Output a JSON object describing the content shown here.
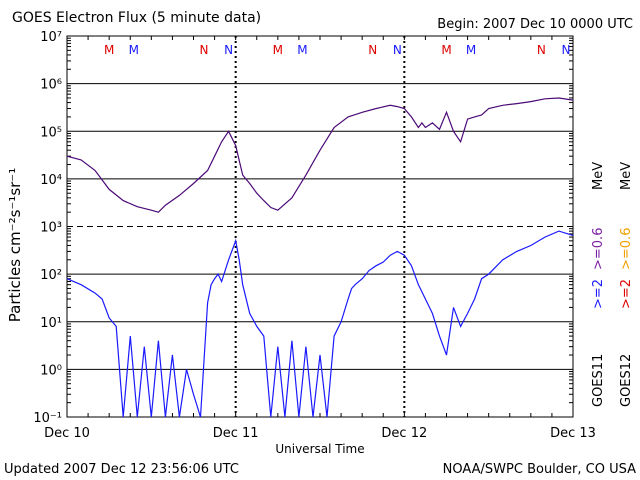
{
  "header": {
    "title": "GOES Electron Flux (5 minute data)",
    "begin": "Begin: 2007 Dec 10 0000 UTC"
  },
  "footer": {
    "updated": "Updated 2007 Dec 12 23:56:06 UTC",
    "credit": "NOAA/SWPC Boulder, CO USA"
  },
  "right_labels": {
    "goes11": "GOES11",
    "goes12": "GOES12",
    "ge2": ">=2",
    "ge06": ">=0.6",
    "mev": "MeV"
  },
  "colors": {
    "series_2mev": "#1a1aff",
    "series_06mev": "#4b0a78",
    "marker_m": "#e00000",
    "marker_n_red": "#e00000",
    "label_goes11_2mev": "#1a1aff",
    "label_goes11_06mev": "#7a1fa2",
    "label_goes12_2mev": "#e00000",
    "label_goes12_06mev": "#f0a000"
  },
  "chart_data": {
    "type": "line",
    "title": "GOES Electron Flux (5 minute data)",
    "xlabel": "Universal Time",
    "ylabel": "Particles cm⁻²s⁻¹sr⁻¹",
    "y_scale": "log",
    "ylim": [
      0.1,
      10000000
    ],
    "xlim_hours": [
      0,
      72
    ],
    "x_ticks": [
      {
        "hour": 0,
        "label": "Dec 10"
      },
      {
        "hour": 24,
        "label": "Dec 11"
      },
      {
        "hour": 48,
        "label": "Dec 12"
      },
      {
        "hour": 72,
        "label": "Dec 13"
      }
    ],
    "y_ticks": [
      {
        "exp": -1,
        "label": "10⁻¹"
      },
      {
        "exp": 0,
        "label": "10⁰"
      },
      {
        "exp": 1,
        "label": "10¹"
      },
      {
        "exp": 2,
        "label": "10²"
      },
      {
        "exp": 3,
        "label": "10³"
      },
      {
        "exp": 4,
        "label": "10⁴"
      },
      {
        "exp": 5,
        "label": "10⁵"
      },
      {
        "exp": 6,
        "label": "10⁶"
      },
      {
        "exp": 7,
        "label": "10⁷"
      }
    ],
    "threshold": 1000,
    "markers": [
      {
        "hour": 6,
        "label": "M"
      },
      {
        "hour": 9.5,
        "label": "M"
      },
      {
        "hour": 19.5,
        "label": "N"
      },
      {
        "hour": 23,
        "label": "N"
      },
      {
        "hour": 30,
        "label": "M"
      },
      {
        "hour": 33.5,
        "label": "M"
      },
      {
        "hour": 43.5,
        "label": "N"
      },
      {
        "hour": 47,
        "label": "N"
      },
      {
        "hour": 54,
        "label": "M"
      },
      {
        "hour": 57.5,
        "label": "M"
      },
      {
        "hour": 67.5,
        "label": "N"
      },
      {
        "hour": 71,
        "label": "N"
      }
    ],
    "series": [
      {
        "name": ">=0.6 MeV",
        "x": [
          0,
          2,
          4,
          6,
          8,
          10,
          12,
          13,
          14,
          16,
          18,
          20,
          21,
          22,
          23,
          24,
          25,
          26,
          27,
          28,
          29,
          30,
          32,
          34,
          36,
          38,
          40,
          42,
          44,
          46,
          47,
          48,
          49,
          50,
          50.5,
          51,
          52,
          53,
          54,
          55,
          56,
          57,
          58,
          59,
          60,
          62,
          64,
          66,
          68,
          70,
          72
        ],
        "y": [
          30000,
          25000,
          15000,
          6000,
          3500,
          2600,
          2200,
          2000,
          2800,
          4500,
          8000,
          15000,
          30000,
          60000,
          100000,
          50000,
          12000,
          8000,
          5000,
          3500,
          2500,
          2200,
          4000,
          12000,
          40000,
          120000,
          200000,
          250000,
          300000,
          350000,
          330000,
          300000,
          200000,
          120000,
          150000,
          120000,
          150000,
          110000,
          250000,
          100000,
          60000,
          180000,
          200000,
          220000,
          300000,
          350000,
          380000,
          420000,
          480000,
          500000,
          450000
        ]
      },
      {
        "name": ">=2 MeV",
        "x": [
          0,
          2,
          4,
          5,
          6,
          7,
          8,
          9,
          10,
          11,
          12,
          13,
          14,
          15,
          16,
          17,
          18,
          19,
          20,
          20.5,
          21,
          21.5,
          22,
          23,
          24,
          24.5,
          25,
          26,
          27,
          28,
          29,
          30,
          31,
          32,
          33,
          34,
          35,
          36,
          37,
          38,
          39,
          40,
          40.5,
          41,
          42,
          43,
          44,
          45,
          46,
          47,
          48,
          49,
          50,
          51,
          52,
          53,
          54,
          55,
          56,
          57,
          58,
          59,
          60,
          62,
          64,
          66,
          68,
          70,
          72
        ],
        "y": [
          80,
          60,
          40,
          30,
          12,
          8,
          0.1,
          5,
          0.1,
          3,
          0.1,
          4,
          0.1,
          2,
          0.1,
          1,
          0.3,
          0.1,
          25,
          60,
          80,
          100,
          70,
          200,
          500,
          200,
          60,
          15,
          8,
          5,
          0.1,
          3,
          0.1,
          4,
          0.1,
          3,
          0.1,
          2,
          0.1,
          5,
          10,
          30,
          50,
          60,
          80,
          120,
          150,
          180,
          250,
          300,
          250,
          150,
          60,
          30,
          15,
          5,
          2,
          20,
          8,
          15,
          30,
          80,
          100,
          200,
          300,
          400,
          600,
          800,
          650
        ]
      }
    ]
  }
}
